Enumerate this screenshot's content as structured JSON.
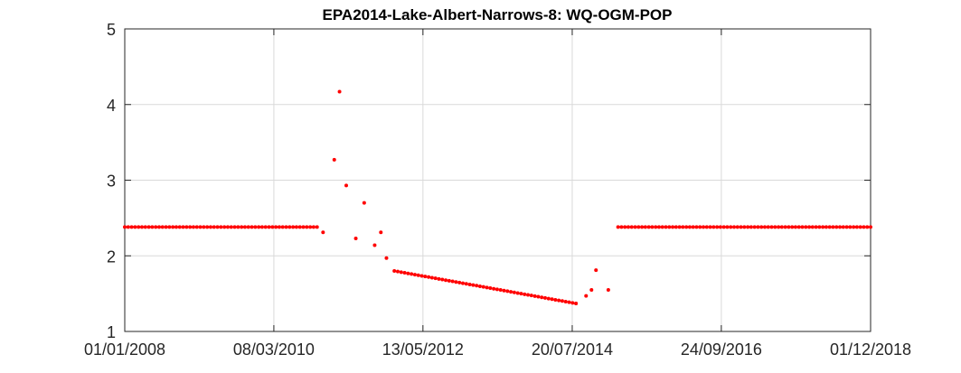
{
  "chart_data": {
    "type": "scatter",
    "title": "EPA2014-Lake-Albert-Narrows-8: WQ-OGM-POP",
    "xlabel": "",
    "ylabel": "",
    "x_axis_type": "date",
    "xlim": [
      "2008-01-01",
      "2018-12-01"
    ],
    "ylim": [
      1,
      5
    ],
    "x_ticks": [
      "2008-01-01",
      "2010-03-08",
      "2012-05-13",
      "2014-07-20",
      "2016-09-24",
      "2018-12-01"
    ],
    "x_tick_labels": [
      "01/01/2008",
      "08/03/2010",
      "13/05/2012",
      "20/07/2014",
      "24/09/2016",
      "01/12/2018"
    ],
    "y_ticks": [
      1,
      2,
      3,
      4,
      5
    ],
    "y_tick_labels": [
      "1",
      "2",
      "3",
      "4",
      "5"
    ],
    "grid": true,
    "marker_color": "#ff0000",
    "series": [
      {
        "name": "",
        "points": [
          [
            "2008-01-01",
            2.38
          ],
          [
            "2010-10-25",
            2.38
          ],
          [
            "2010-11-26",
            2.31
          ],
          [
            "2011-01-25",
            3.27
          ],
          [
            "2011-02-22",
            4.17
          ],
          [
            "2011-03-30",
            2.93
          ],
          [
            "2011-05-20",
            2.23
          ],
          [
            "2011-07-04",
            2.7
          ],
          [
            "2011-08-29",
            2.14
          ],
          [
            "2011-10-01",
            2.31
          ],
          [
            "2011-10-31",
            1.97
          ],
          [
            "2011-12-12",
            1.8
          ],
          [
            "2014-08-09",
            1.37
          ],
          [
            "2014-08-09",
            1.37
          ],
          [
            "2014-10-02",
            1.47
          ],
          [
            "2014-10-31",
            1.55
          ],
          [
            "2014-11-24",
            1.81
          ],
          [
            "2015-01-29",
            1.55
          ],
          [
            "2015-03-22",
            2.38
          ],
          [
            "2018-12-01",
            2.38
          ]
        ]
      }
    ]
  }
}
